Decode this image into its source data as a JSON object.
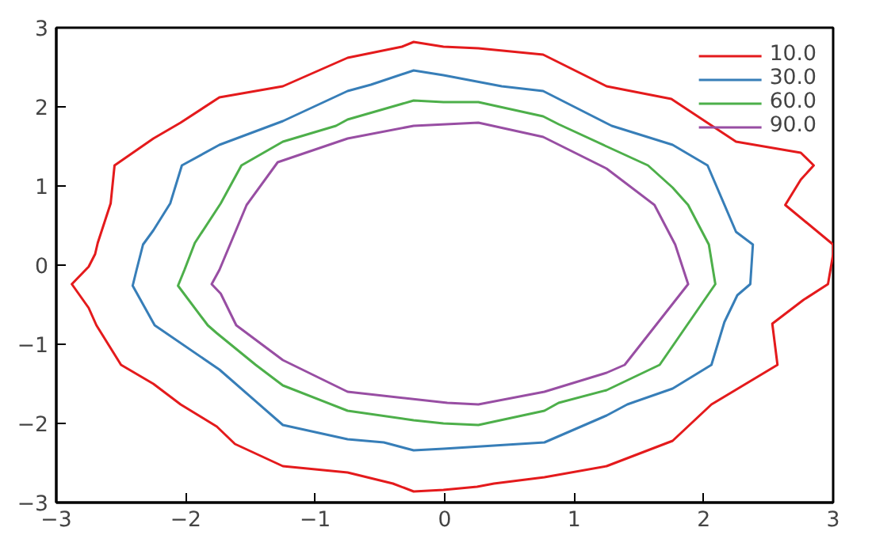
{
  "chart_data": {
    "type": "line",
    "xlim": [
      -3,
      3
    ],
    "ylim": [
      -3,
      3
    ],
    "xticks": [
      -3,
      -2,
      -1,
      0,
      1,
      2,
      3
    ],
    "yticks": [
      -3,
      -2,
      -1,
      0,
      1,
      2,
      3
    ],
    "grid": false,
    "legend": "top right",
    "marker": "none",
    "line_style": "solid",
    "series": [
      {
        "name": "10.0",
        "color": "#e41a1c",
        "x": [
          -2.55,
          -2.25,
          -2.04,
          -1.74,
          -1.25,
          -0.75,
          -0.33,
          -0.24,
          -0.01,
          0.26,
          0.76,
          1.25,
          1.75,
          2.25,
          2.75,
          2.85,
          2.75,
          2.63,
          3.0,
          3.0,
          2.96,
          2.77,
          2.53,
          2.57,
          2.06,
          1.76,
          1.25,
          0.77,
          0.38,
          0.25,
          -0.01,
          -0.24,
          -0.4,
          -0.75,
          -1.25,
          -1.62,
          -1.76,
          -2.04,
          -2.25,
          -2.5,
          -2.69,
          -2.75,
          -2.88,
          -2.75,
          -2.7,
          -2.68,
          -2.58,
          -2.55
        ],
        "values": [
          1.26,
          1.6,
          1.8,
          2.12,
          2.26,
          2.62,
          2.76,
          2.82,
          2.76,
          2.74,
          2.66,
          2.26,
          2.1,
          1.56,
          1.42,
          1.26,
          1.08,
          0.76,
          0.26,
          0.14,
          -0.24,
          -0.44,
          -0.74,
          -1.26,
          -1.76,
          -2.22,
          -2.54,
          -2.68,
          -2.76,
          -2.8,
          -2.84,
          -2.86,
          -2.76,
          -2.62,
          -2.54,
          -2.26,
          -2.04,
          -1.76,
          -1.5,
          -1.26,
          -0.76,
          -0.54,
          -0.24,
          -0.02,
          0.14,
          0.28,
          0.78,
          1.26
        ]
      },
      {
        "name": "30.0",
        "color": "#377eb8",
        "x": [
          -2.03,
          -1.74,
          -1.25,
          -0.75,
          -0.57,
          -0.24,
          -0.01,
          0.44,
          0.76,
          1.29,
          1.76,
          2.03,
          2.25,
          2.38,
          2.36,
          2.26,
          2.16,
          2.06,
          1.76,
          1.41,
          1.25,
          0.77,
          -0.01,
          -0.24,
          -0.47,
          -0.75,
          -1.25,
          -1.74,
          -2.24,
          -2.41,
          -2.38,
          -2.33,
          -2.25,
          -2.12,
          -2.03
        ],
        "values": [
          1.26,
          1.52,
          1.82,
          2.2,
          2.28,
          2.46,
          2.4,
          2.26,
          2.2,
          1.76,
          1.52,
          1.26,
          0.42,
          0.26,
          -0.24,
          -0.38,
          -0.72,
          -1.26,
          -1.56,
          -1.76,
          -1.9,
          -2.24,
          -2.32,
          -2.34,
          -2.24,
          -2.2,
          -2.02,
          -1.32,
          -0.76,
          -0.26,
          -0.06,
          0.26,
          0.44,
          0.78,
          1.26
        ]
      },
      {
        "name": "60.0",
        "color": "#4daf4a",
        "x": [
          -2.01,
          -1.93,
          -1.73,
          -1.57,
          -1.25,
          -0.84,
          -0.75,
          -0.24,
          -0.01,
          0.26,
          0.76,
          0.88,
          1.25,
          1.57,
          1.76,
          1.88,
          2.04,
          2.09,
          1.66,
          1.25,
          0.88,
          0.77,
          0.26,
          -0.01,
          -0.24,
          -0.75,
          -1.25,
          -1.46,
          -1.76,
          -1.83,
          -2.06,
          -2.01
        ],
        "values": [
          -0.06,
          0.28,
          0.78,
          1.26,
          1.56,
          1.76,
          1.84,
          2.08,
          2.06,
          2.06,
          1.88,
          1.78,
          1.5,
          1.26,
          0.98,
          0.76,
          0.26,
          -0.24,
          -1.26,
          -1.58,
          -1.74,
          -1.84,
          -2.02,
          -2.0,
          -1.96,
          -1.84,
          -1.52,
          -1.26,
          -0.86,
          -0.76,
          -0.26,
          -0.06
        ]
      },
      {
        "name": "90.0",
        "color": "#984ea3",
        "x": [
          -1.74,
          -1.53,
          -1.29,
          -0.75,
          -0.24,
          0.26,
          0.76,
          1.25,
          1.62,
          1.78,
          1.88,
          1.39,
          1.25,
          0.77,
          0.26,
          0.02,
          -0.75,
          -1.25,
          -1.61,
          -1.73,
          -1.8,
          -1.74
        ],
        "values": [
          -0.06,
          0.76,
          1.3,
          1.6,
          1.76,
          1.8,
          1.62,
          1.22,
          0.76,
          0.26,
          -0.24,
          -1.26,
          -1.36,
          -1.6,
          -1.76,
          -1.74,
          -1.6,
          -1.2,
          -0.76,
          -0.36,
          -0.24,
          -0.06
        ]
      }
    ]
  }
}
